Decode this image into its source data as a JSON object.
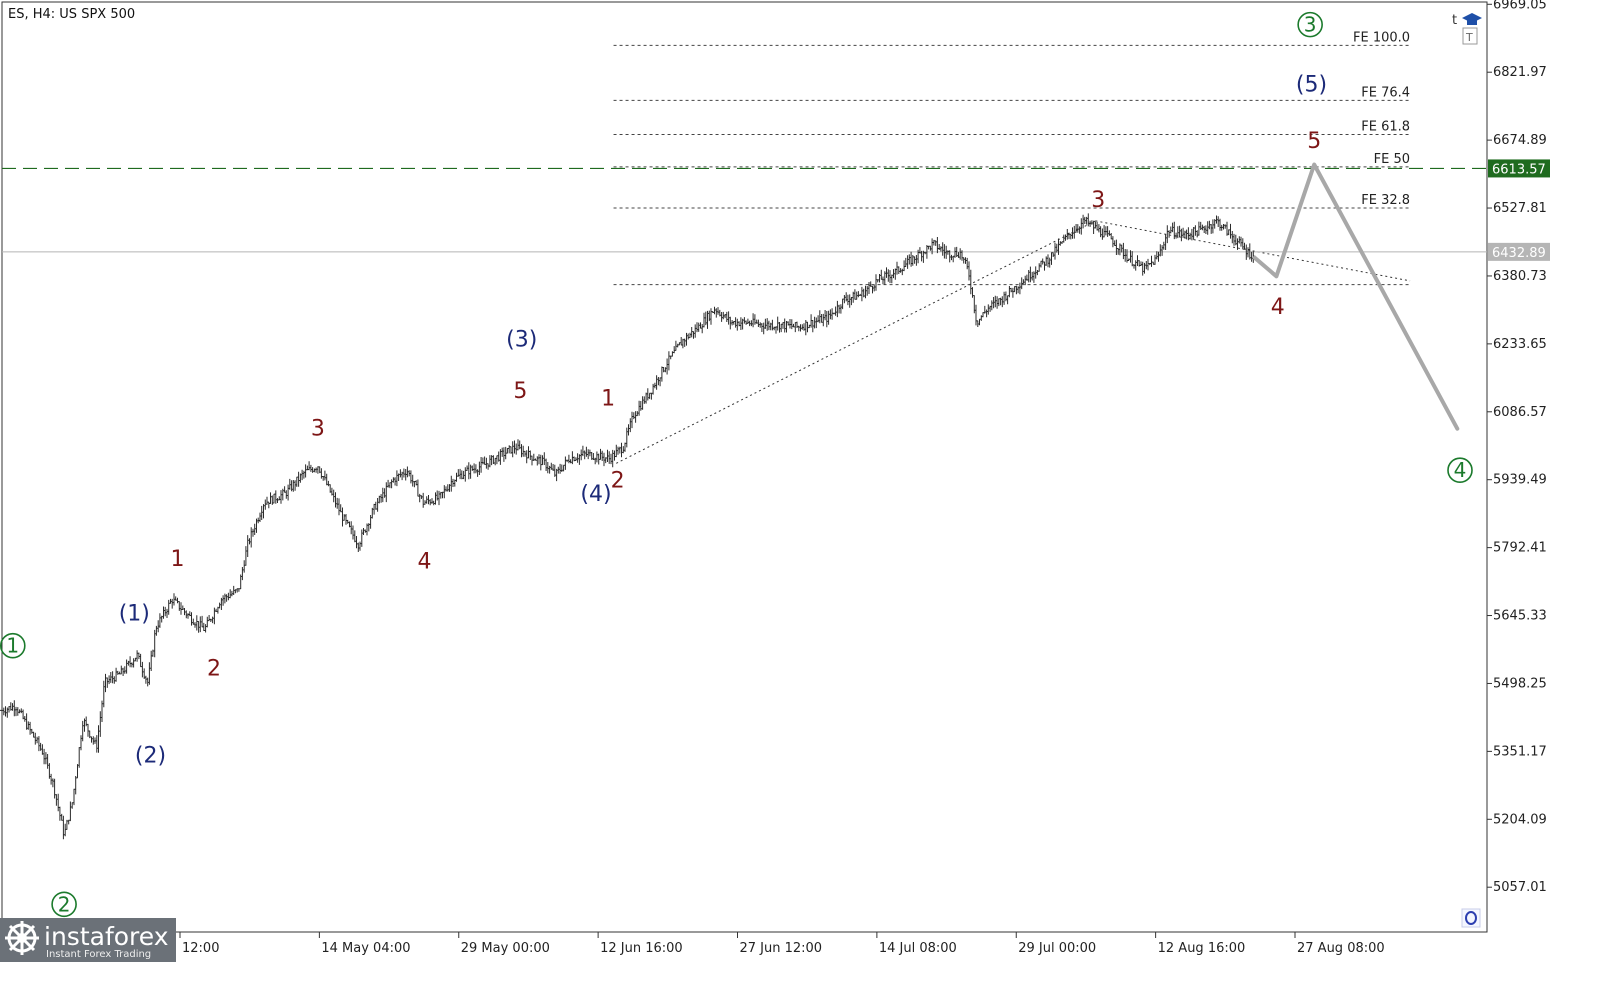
{
  "chart_data": {
    "type": "line",
    "title": "ES, H4:  US SPX 500",
    "symbol": "ES",
    "timeframe": "H4",
    "instrument": "US SPX 500",
    "x_ticks": [
      "12:00",
      "14 May 04:00",
      "29 May 00:00",
      "12 Jun 16:00",
      "27 Jun 12:00",
      "14 Jul 08:00",
      "29 Jul 00:00",
      "12 Aug 16:00",
      "27 Aug 08:00"
    ],
    "y_ticks": [
      6969.05,
      6821.97,
      6674.89,
      6527.81,
      6380.73,
      6233.65,
      6086.57,
      5939.49,
      5792.41,
      5645.33,
      5498.25,
      5351.17,
      5204.09,
      5057.01
    ],
    "ylim": [
      4960,
      6974
    ],
    "x_bar_range": [
      0,
      1100
    ],
    "price_line": {
      "value": 6613.57,
      "label": "6613.57",
      "color": "#1f6b1f"
    },
    "current_price": {
      "value": 6432.89,
      "label": "6432.89",
      "color": "#b5b5b5"
    },
    "fib_levels": [
      {
        "label": "FE 100.0",
        "value": 6880
      },
      {
        "label": "FE 76.4",
        "value": 6761
      },
      {
        "label": "FE 61.8",
        "value": 6687
      },
      {
        "label": "FE 50",
        "value": 6617
      },
      {
        "label": "FE 32.8",
        "value": 6528
      },
      {
        "label": "",
        "value": 6362
      }
    ],
    "fib_x_range": [
      453,
      1043
    ],
    "price_series": {
      "name": "",
      "anchors": [
        [
          0,
          5440
        ],
        [
          10,
          5450
        ],
        [
          20,
          5400
        ],
        [
          30,
          5350
        ],
        [
          38,
          5280
        ],
        [
          46,
          5170
        ],
        [
          52,
          5240
        ],
        [
          60,
          5420
        ],
        [
          70,
          5360
        ],
        [
          76,
          5500
        ],
        [
          88,
          5520
        ],
        [
          100,
          5560
        ],
        [
          108,
          5500
        ],
        [
          114,
          5620
        ],
        [
          126,
          5680
        ],
        [
          140,
          5640
        ],
        [
          150,
          5615
        ],
        [
          162,
          5680
        ],
        [
          175,
          5700
        ],
        [
          182,
          5800
        ],
        [
          194,
          5890
        ],
        [
          210,
          5910
        ],
        [
          224,
          5955
        ],
        [
          234,
          5970
        ],
        [
          242,
          5920
        ],
        [
          252,
          5860
        ],
        [
          264,
          5800
        ],
        [
          276,
          5880
        ],
        [
          290,
          5940
        ],
        [
          300,
          5960
        ],
        [
          312,
          5890
        ],
        [
          324,
          5900
        ],
        [
          334,
          5940
        ],
        [
          346,
          5960
        ],
        [
          356,
          5970
        ],
        [
          368,
          5990
        ],
        [
          380,
          6010
        ],
        [
          392,
          5990
        ],
        [
          402,
          5975
        ],
        [
          410,
          5950
        ],
        [
          420,
          5985
        ],
        [
          432,
          5995
        ],
        [
          442,
          5990
        ],
        [
          450,
          5985
        ],
        [
          460,
          6010
        ],
        [
          468,
          6080
        ],
        [
          480,
          6130
        ],
        [
          492,
          6190
        ],
        [
          504,
          6240
        ],
        [
          516,
          6270
        ],
        [
          528,
          6310
        ],
        [
          540,
          6280
        ],
        [
          552,
          6280
        ],
        [
          564,
          6275
        ],
        [
          576,
          6275
        ],
        [
          590,
          6270
        ],
        [
          600,
          6280
        ],
        [
          612,
          6290
        ],
        [
          624,
          6330
        ],
        [
          636,
          6340
        ],
        [
          648,
          6370
        ],
        [
          662,
          6390
        ],
        [
          676,
          6420
        ],
        [
          690,
          6450
        ],
        [
          700,
          6430
        ],
        [
          710,
          6430
        ],
        [
          716,
          6390
        ],
        [
          722,
          6280
        ],
        [
          730,
          6310
        ],
        [
          740,
          6330
        ],
        [
          752,
          6360
        ],
        [
          764,
          6390
        ],
        [
          776,
          6420
        ],
        [
          790,
          6470
        ],
        [
          802,
          6500
        ],
        [
          812,
          6480
        ],
        [
          822,
          6460
        ],
        [
          834,
          6420
        ],
        [
          846,
          6395
        ],
        [
          856,
          6420
        ],
        [
          864,
          6480
        ],
        [
          876,
          6470
        ],
        [
          888,
          6480
        ],
        [
          900,
          6500
        ],
        [
          910,
          6470
        ],
        [
          920,
          6440
        ],
        [
          928,
          6420
        ]
      ]
    },
    "projection": {
      "name": "",
      "points": [
        [
          928,
          6420
        ],
        [
          944,
          6380
        ],
        [
          972,
          6622
        ],
        [
          1078,
          6050
        ]
      ],
      "color": "#a8a8a8"
    },
    "trendlines": [
      {
        "style": "dotted",
        "points": [
          [
            455,
            5975
          ],
          [
            810,
            6500
          ]
        ]
      },
      {
        "style": "dotted",
        "points": [
          [
            810,
            6500
          ],
          [
            1043,
            6370
          ]
        ]
      }
    ],
    "wave_labels": [
      {
        "text": "1",
        "circled": true,
        "color": "#1b7a2c",
        "x": 8,
        "y": 5580
      },
      {
        "text": "2",
        "circled": true,
        "color": "#1b7a2c",
        "x": 46,
        "y": 5020
      },
      {
        "text": "3",
        "circled": true,
        "color": "#1b7a2c",
        "x": 969,
        "y": 6925
      },
      {
        "text": "4",
        "circled": true,
        "color": "#1b7a2c",
        "x": 1080,
        "y": 5960
      },
      {
        "text": "(1)",
        "circled": false,
        "color": "#1c2a78",
        "x": 98,
        "y": 5650
      },
      {
        "text": "(2)",
        "circled": false,
        "color": "#1c2a78",
        "x": 110,
        "y": 5342
      },
      {
        "text": "(3)",
        "circled": false,
        "color": "#1c2a78",
        "x": 385,
        "y": 6243
      },
      {
        "text": "(4)",
        "circled": false,
        "color": "#1c2a78",
        "x": 440,
        "y": 5909
      },
      {
        "text": "(5)",
        "circled": false,
        "color": "#1c2a78",
        "x": 970,
        "y": 6795
      },
      {
        "text": "1",
        "circled": false,
        "color": "#7d1616",
        "x": 130,
        "y": 5768
      },
      {
        "text": "2",
        "circled": false,
        "color": "#7d1616",
        "x": 157,
        "y": 5531
      },
      {
        "text": "3",
        "circled": false,
        "color": "#7d1616",
        "x": 234,
        "y": 6050
      },
      {
        "text": "4",
        "circled": false,
        "color": "#7d1616",
        "x": 313,
        "y": 5762
      },
      {
        "text": "5",
        "circled": false,
        "color": "#7d1616",
        "x": 384,
        "y": 6132
      },
      {
        "text": "1",
        "circled": false,
        "color": "#7d1616",
        "x": 449,
        "y": 6115
      },
      {
        "text": "2",
        "circled": false,
        "color": "#7d1616",
        "x": 456,
        "y": 5938
      },
      {
        "text": "3",
        "circled": false,
        "color": "#7d1616",
        "x": 812,
        "y": 6545
      },
      {
        "text": "4",
        "circled": false,
        "color": "#7d1616",
        "x": 945,
        "y": 6314
      },
      {
        "text": "5",
        "circled": false,
        "color": "#7d1616",
        "x": 972,
        "y": 6673
      }
    ],
    "grid": false,
    "colors": {
      "bars": "#2b2b2b",
      "axis": "#333333",
      "wave_green": "#1b7a2c",
      "wave_blue": "#1c2a78",
      "wave_red": "#7d1616"
    }
  },
  "branding": {
    "logo_name": "instaforex",
    "tagline": "Instant Forex Trading"
  },
  "icons": [
    "trade-level-icon",
    "cap-icon",
    "corner-marker-icon"
  ]
}
